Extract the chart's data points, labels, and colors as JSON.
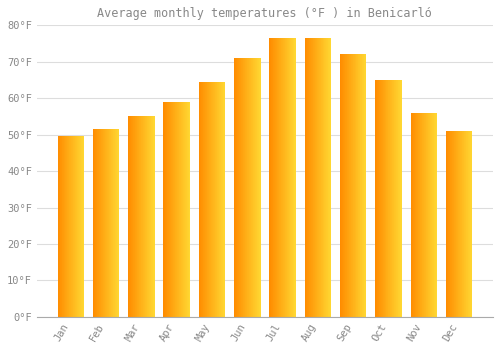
{
  "title": "Average monthly temperatures (°F ) in Benicarló",
  "months": [
    "Jan",
    "Feb",
    "Mar",
    "Apr",
    "May",
    "Jun",
    "Jul",
    "Aug",
    "Sep",
    "Oct",
    "Nov",
    "Dec"
  ],
  "values": [
    49.5,
    51.5,
    55.0,
    59.0,
    64.5,
    71.0,
    76.5,
    76.5,
    72.0,
    65.0,
    56.0,
    51.0
  ],
  "bar_color_face": "#FFA500",
  "bar_color_edge": "#FF8C00",
  "bar_color_light": "#FFD070",
  "background_color": "#FFFFFF",
  "grid_color": "#DDDDDD",
  "text_color": "#888888",
  "title_color": "#888888",
  "ylim": [
    0,
    80
  ],
  "yticks": [
    0,
    10,
    20,
    30,
    40,
    50,
    60,
    70,
    80
  ],
  "ytick_labels": [
    "0°F",
    "10°F",
    "20°F",
    "30°F",
    "40°F",
    "50°F",
    "60°F",
    "70°F",
    "80°F"
  ]
}
